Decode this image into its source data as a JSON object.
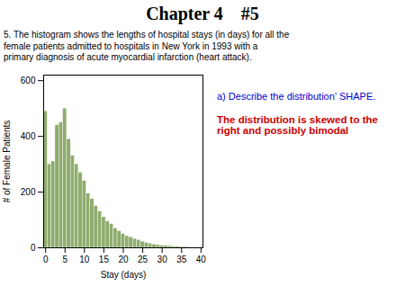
{
  "chart_data": {
    "type": "histogram",
    "title": "Chapter 4    #5",
    "subtitle": "5. The histogram shows the lengths of hospital stays (in days) for all the\nfemale patients admitted to hospitals in New York in 1993 with a\nprimary diagnosis of acute myocardial infarction (heart attack).",
    "annotations": [
      {
        "text": "a) Describe the distribution’ SHAPE.",
        "color": "#0000cc"
      },
      {
        "text": "The distribution is skewed to the\nright and possibly bimodal",
        "color": "#cc0000"
      }
    ],
    "xlabel": "Stay (days)",
    "ylabel": "# of Female Patients",
    "bins": [
      -0.5,
      0.5,
      1.5,
      2.5,
      3.5,
      4.5,
      5.5,
      6.5,
      7.5,
      8.5,
      9.5,
      10.5,
      11.5,
      12.5,
      13.5,
      14.5,
      15.5,
      16.5,
      17.5,
      18.5,
      19.5,
      20.5,
      21.5,
      22.5,
      23.5,
      24.5,
      25.5,
      26.5,
      27.5,
      28.5,
      29.5,
      30.5,
      31.5,
      32.5,
      33.5,
      34.5,
      35.5,
      36.5,
      37.5,
      38.5,
      39.5
    ],
    "values": [
      490,
      300,
      310,
      440,
      450,
      500,
      390,
      330,
      300,
      270,
      240,
      195,
      175,
      150,
      130,
      110,
      95,
      85,
      70,
      60,
      50,
      42,
      38,
      32,
      28,
      22,
      18,
      15,
      12,
      10,
      8,
      7,
      6,
      5,
      4,
      3,
      3,
      2,
      2,
      1
    ],
    "color": "#8fac6e",
    "xlim": [
      -0.5,
      40.5
    ],
    "ylim": [
      0,
      620
    ],
    "xticks": [
      0,
      5,
      10,
      15,
      20,
      25,
      30,
      35,
      40
    ],
    "yticks": [
      0,
      200,
      400,
      600
    ]
  }
}
